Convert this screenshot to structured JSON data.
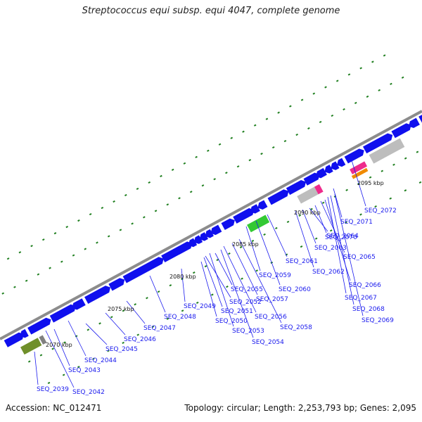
{
  "header": {
    "title": "Streptococcus equi subsp. equi 4047, complete genome"
  },
  "footer": {
    "accession": "Accession: NC_012471",
    "stats": "Topology: circular; Length: 2,253,793 bp; Genes: 2,095"
  },
  "colors": {
    "backbone": "#8c8c8c",
    "cds": "#0f0fee",
    "label": "#1a1aee",
    "tick": "#1f7f1f",
    "gray_feature": "#bdbdbd",
    "magenta_feature": "#ee2b8c",
    "orange_feature": "#f08a00",
    "green_feature": "#33c933",
    "olive_feature": "#6f8f2a"
  },
  "kbp_markers": [
    "2070 kbp",
    "2075 kbp",
    "2080 kbp",
    "2085 kbp",
    "2090 kbp",
    "2095 kbp"
  ],
  "gene_labels": [
    "SEQ_2039",
    "SEQ_2042",
    "SEQ_2043",
    "SEQ_2044",
    "SEQ_2045",
    "SEQ_2046",
    "SEQ_2047",
    "SEQ_2048",
    "SEQ_2049",
    "SEQ_2050",
    "SEQ_2051",
    "SEQ_2052",
    "SEQ_2053",
    "SEQ_2054",
    "SEQ_2055",
    "SEQ_2056",
    "SEQ_2057",
    "SEQ_2058",
    "SEQ_2059",
    "SEQ_2060",
    "SEQ_2061",
    "SEQ_2062",
    "SEQ_2063",
    "SEQ_2064",
    "SEQ_2065",
    "SEQ_2066",
    "SEQ_2067",
    "SEQ_2068",
    "SEQ_2069",
    "SEQ_2070",
    "SEQ_2071",
    "SEQ_2072"
  ]
}
